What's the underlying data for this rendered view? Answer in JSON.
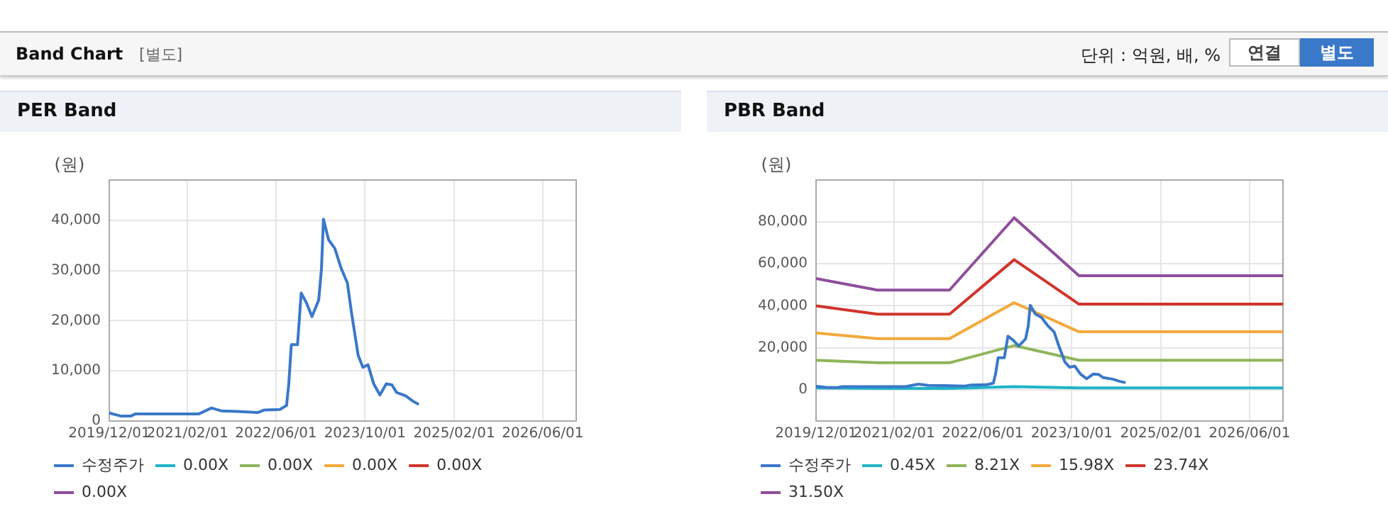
{
  "chart_data": [
    {
      "type": "line",
      "title": "PER Band",
      "ylabel": "(원)",
      "annotations": [
        "Band Chart",
        "[별도]",
        "단위 : 억원, 배, %",
        "연결",
        "별도"
      ],
      "xlim": [
        "2019-12-01",
        "2026-12-01"
      ],
      "xticks": [
        {
          "value": "2019-12-01",
          "label": "2019/12/01"
        },
        {
          "value": "2021-02-01",
          "label": "2021/02/01"
        },
        {
          "value": "2022-06-01",
          "label": "2022/06/01"
        },
        {
          "value": "2023-10-01",
          "label": "2023/10/01"
        },
        {
          "value": "2025-02-01",
          "label": "2025/02/01"
        },
        {
          "value": "2026-06-01",
          "label": "2026/06/01"
        }
      ],
      "ylim": [
        0,
        48000
      ],
      "yticks": [
        {
          "value": 0,
          "label": "0"
        },
        {
          "value": 10000,
          "label": "10,000"
        },
        {
          "value": 20000,
          "label": "20,000"
        },
        {
          "value": 30000,
          "label": "30,000"
        },
        {
          "value": 40000,
          "label": "40,000"
        }
      ],
      "grid": true,
      "legend": "bottom",
      "marker": "none",
      "line_style": "solid",
      "series": [
        {
          "name": "수정주가",
          "color": "#3a78c9",
          "x": [
            "2019-12-01",
            "2020-02-01",
            "2020-03-29",
            "2020-04-21",
            "2021-04-03",
            "2021-06-13",
            "2021-08-08",
            "2021-11-01",
            "2022-02-23",
            "2022-03-29",
            "2022-06-22",
            "2022-07-29",
            "2022-08-10",
            "2022-08-24",
            "2022-09-27",
            "2022-10-17",
            "2022-11-14",
            "2022-12-15",
            "2023-01-21",
            "2023-02-05",
            "2023-02-16",
            "2023-03-16",
            "2023-04-19",
            "2023-05-23",
            "2023-06-27",
            "2023-07-19",
            "2023-08-25",
            "2023-09-20",
            "2023-10-18",
            "2023-11-18",
            "2023-12-22",
            "2024-01-26",
            "2024-02-26",
            "2024-03-22",
            "2024-05-12",
            "2024-06-18",
            "2024-07-22"
          ],
          "values": [
            1600,
            1000,
            1000,
            1400,
            1400,
            2600,
            2000,
            1900,
            1700,
            2200,
            2300,
            3100,
            7400,
            15200,
            15200,
            25500,
            23600,
            20800,
            24100,
            30300,
            40200,
            36100,
            34400,
            30500,
            27500,
            21700,
            13100,
            10700,
            11200,
            7400,
            5200,
            7400,
            7200,
            5700,
            5000,
            4000,
            3300
          ]
        },
        {
          "name": "0.00X",
          "color": "#1fb4c8"
        },
        {
          "name": "0.00X",
          "color": "#8fb55a"
        },
        {
          "name": "0.00X",
          "color": "#f3a93b"
        },
        {
          "name": "0.00X",
          "color": "#d0342c"
        },
        {
          "name": "0.00X",
          "color": "#8e4e9c"
        }
      ]
    },
    {
      "type": "line",
      "title": "PBR Band",
      "ylabel": "(원)",
      "xlim": [
        "2019-12-01",
        "2026-12-01"
      ],
      "xticks": [
        {
          "value": "2019-12-01",
          "label": "2019/12/01"
        },
        {
          "value": "2021-02-01",
          "label": "2021/02/01"
        },
        {
          "value": "2022-06-01",
          "label": "2022/06/01"
        },
        {
          "value": "2023-10-01",
          "label": "2023/10/01"
        },
        {
          "value": "2025-02-01",
          "label": "2025/02/01"
        },
        {
          "value": "2026-06-01",
          "label": "2026/06/01"
        }
      ],
      "ylim": [
        -15000,
        100000
      ],
      "yticks": [
        {
          "value": 0,
          "label": "0"
        },
        {
          "value": 20000,
          "label": "20,000"
        },
        {
          "value": 40000,
          "label": "40,000"
        },
        {
          "value": 60000,
          "label": "60,000"
        },
        {
          "value": 80000,
          "label": "80,000"
        }
      ],
      "grid": true,
      "legend": "bottom",
      "marker": "none",
      "line_style": "solid",
      "series": [
        {
          "name": "수정주가",
          "color": "#3a78c9",
          "x": [
            "2019-12-01",
            "2020-02-01",
            "2020-03-29",
            "2020-04-21",
            "2021-04-03",
            "2021-06-13",
            "2021-08-08",
            "2021-11-01",
            "2022-02-23",
            "2022-03-29",
            "2022-06-22",
            "2022-07-29",
            "2022-08-10",
            "2022-08-24",
            "2022-09-27",
            "2022-10-17",
            "2022-11-14",
            "2022-12-15",
            "2023-01-21",
            "2023-02-05",
            "2023-02-16",
            "2023-03-16",
            "2023-04-19",
            "2023-05-23",
            "2023-06-27",
            "2023-07-19",
            "2023-08-25",
            "2023-09-20",
            "2023-10-18",
            "2023-11-18",
            "2023-12-22",
            "2024-01-26",
            "2024-02-26",
            "2024-03-22",
            "2024-05-12",
            "2024-06-18",
            "2024-07-22"
          ],
          "values": [
            1600,
            1000,
            1000,
            1400,
            1400,
            2600,
            2000,
            1900,
            1700,
            2200,
            2300,
            3100,
            7400,
            15200,
            15200,
            25500,
            23600,
            20800,
            24100,
            30300,
            40200,
            36100,
            34400,
            30500,
            27500,
            21700,
            13100,
            10700,
            11200,
            7400,
            5200,
            7400,
            7200,
            5700,
            5000,
            4000,
            3300
          ]
        },
        {
          "name": "0.45X",
          "color": "#1fb4c8",
          "x": [
            "2019-12-01",
            "2020-11-01",
            "2021-12-01",
            "2022-11-20",
            "2023-11-10",
            "2026-12-01"
          ],
          "values": [
            800,
            600,
            600,
            1400,
            800,
            800
          ]
        },
        {
          "name": "8.21X",
          "color": "#8fb55a",
          "x": [
            "2019-12-01",
            "2020-11-01",
            "2021-12-01",
            "2022-11-20",
            "2023-11-10",
            "2026-12-01"
          ],
          "values": [
            14000,
            12800,
            12800,
            21000,
            14000,
            14000
          ]
        },
        {
          "name": "15.98X",
          "color": "#f3a93b",
          "x": [
            "2019-12-01",
            "2020-11-01",
            "2021-12-01",
            "2022-11-20",
            "2023-11-10",
            "2026-12-01"
          ],
          "values": [
            27000,
            24300,
            24300,
            41500,
            27600,
            27600
          ]
        },
        {
          "name": "23.74X",
          "color": "#d0342c",
          "x": [
            "2019-12-01",
            "2020-11-01",
            "2021-12-01",
            "2022-11-20",
            "2023-11-10",
            "2026-12-01"
          ],
          "values": [
            40000,
            36000,
            36000,
            62000,
            40800,
            40800
          ]
        },
        {
          "name": "31.50X",
          "color": "#8e4e9c",
          "x": [
            "2019-12-01",
            "2020-11-01",
            "2021-12-01",
            "2022-11-20",
            "2023-11-10",
            "2026-12-01"
          ],
          "values": [
            53000,
            47500,
            47500,
            82000,
            54300,
            54300
          ]
        }
      ]
    }
  ]
}
